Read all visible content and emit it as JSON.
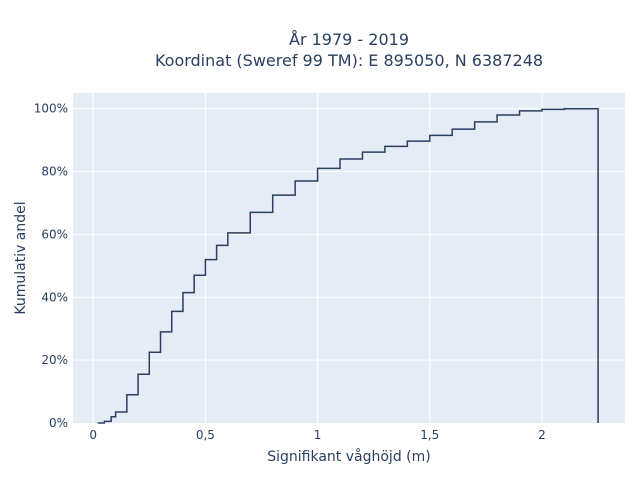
{
  "chart_data": {
    "type": "line",
    "line_shape": "step",
    "title": "År 1979 - 2019",
    "subtitle": "Koordinat (Sweref 99 TM): E 895050, N 6387248",
    "xlabel": "Signifikant våghöjd (m)",
    "ylabel": "Kumulativ andel",
    "xlim": [
      -0.09,
      2.37
    ],
    "ylim": [
      0,
      1.05
    ],
    "x_ticks": [
      0,
      0.5,
      1,
      1.5,
      2
    ],
    "x_tick_labels": [
      "0",
      "0,5",
      "1",
      "1,5",
      "2"
    ],
    "y_ticks": [
      0,
      0.2,
      0.4,
      0.6,
      0.8,
      1.0
    ],
    "y_tick_labels": [
      "0%",
      "20%",
      "40%",
      "60%",
      "80%",
      "100%"
    ],
    "grid": true,
    "colors": {
      "line": "#2a3f5f",
      "plot_bg": "#e5ecf6",
      "grid": "#ffffff"
    },
    "series": [
      {
        "x": [
          0.02,
          0.05,
          0.08,
          0.1,
          0.15,
          0.2,
          0.25,
          0.3,
          0.35,
          0.4,
          0.45,
          0.5,
          0.55,
          0.6,
          0.7,
          0.8,
          0.9,
          1.0,
          1.1,
          1.2,
          1.3,
          1.4,
          1.5,
          1.6,
          1.7,
          1.8,
          1.9,
          2.0,
          2.1,
          2.25,
          2.25
        ],
        "y": [
          0.0,
          0.005,
          0.02,
          0.035,
          0.09,
          0.155,
          0.225,
          0.29,
          0.355,
          0.415,
          0.47,
          0.52,
          0.565,
          0.605,
          0.67,
          0.725,
          0.77,
          0.81,
          0.84,
          0.862,
          0.88,
          0.897,
          0.915,
          0.935,
          0.958,
          0.98,
          0.993,
          0.998,
          1.0,
          1.0,
          0.0
        ]
      }
    ]
  }
}
